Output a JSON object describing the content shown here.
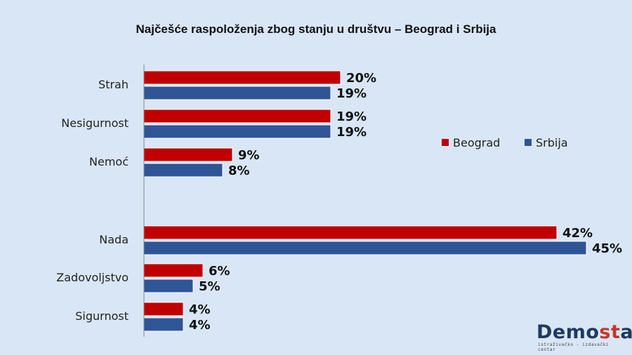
{
  "chart_data": {
    "type": "bar",
    "orientation": "horizontal",
    "title": "Najčešće raspoloženja zbog stanju u društvu – Beograd i Srbija",
    "categories": [
      "Strah",
      "Nesigurnost",
      "Nemoć",
      "Nada",
      "Zadovoljstvo",
      "Sigurnost"
    ],
    "series": [
      {
        "name": "Beograd",
        "values": [
          20,
          19,
          9,
          42,
          6,
          4
        ],
        "labels": [
          "20%",
          "19%",
          "9%",
          "42%",
          "6%",
          "4%"
        ],
        "color": "#c00000"
      },
      {
        "name": "Srbija",
        "values": [
          19,
          19,
          8,
          45,
          5,
          4
        ],
        "labels": [
          "19%",
          "19%",
          "8%",
          "45%",
          "5%",
          "4%"
        ],
        "color": "#2f5597"
      }
    ],
    "xlim": [
      0,
      45
    ],
    "grid": false,
    "legend": "right"
  },
  "logo": {
    "name_part1": "Demo",
    "name_part2": "st",
    "name_part3": "at",
    "tagline": "istraživačko - izdavački centar"
  }
}
